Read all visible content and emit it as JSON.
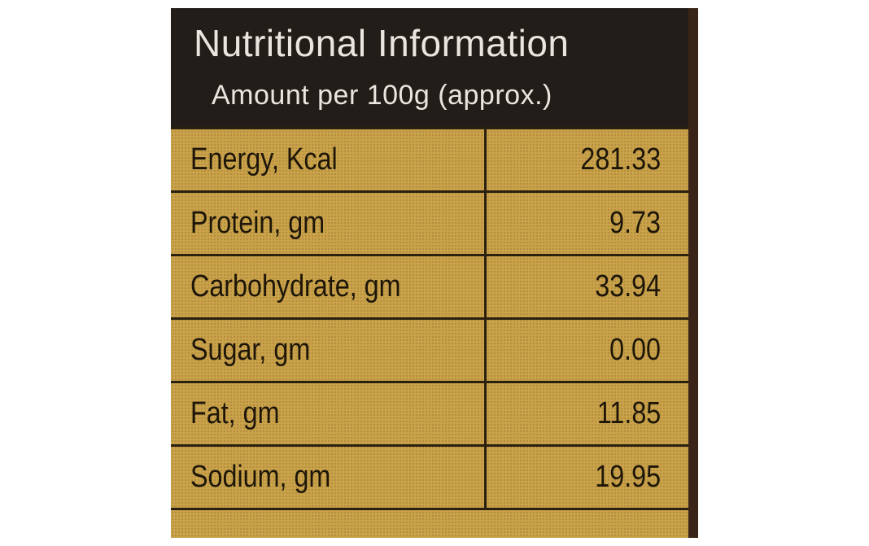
{
  "header": {
    "title": "Nutritional Information",
    "subtitle": "Amount per 100g (approx.)"
  },
  "table": {
    "rows": [
      [
        "Energy, Kcal",
        "281.33"
      ],
      [
        "Protein, gm",
        "9.73"
      ],
      [
        "Carbohydrate, gm",
        "33.94"
      ],
      [
        "Sugar, gm",
        "0.00"
      ],
      [
        "Fat, gm",
        "11.85"
      ],
      [
        "Sodium, gm",
        "19.95"
      ]
    ]
  }
}
